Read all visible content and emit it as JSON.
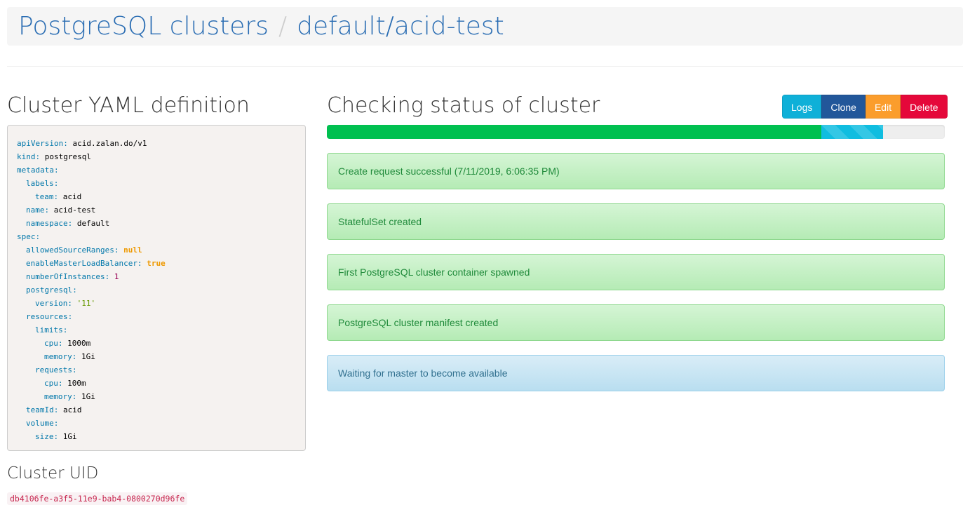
{
  "breadcrumb": {
    "root": "PostgreSQL clusters",
    "separator": "/",
    "current": "default/acid-test"
  },
  "yaml": {
    "title": "Cluster YAML definition",
    "lines": [
      {
        "indent": 0,
        "key": "apiVersion",
        "value": "acid.zalan.do/v1",
        "type": "str"
      },
      {
        "indent": 0,
        "key": "kind",
        "value": "postgresql",
        "type": "str"
      },
      {
        "indent": 0,
        "key": "metadata",
        "value": "",
        "type": ""
      },
      {
        "indent": 1,
        "key": "labels",
        "value": "",
        "type": ""
      },
      {
        "indent": 2,
        "key": "team",
        "value": "acid",
        "type": "str"
      },
      {
        "indent": 1,
        "key": "name",
        "value": "acid-test",
        "type": "str"
      },
      {
        "indent": 1,
        "key": "namespace",
        "value": "default",
        "type": "str"
      },
      {
        "indent": 0,
        "key": "spec",
        "value": "",
        "type": ""
      },
      {
        "indent": 1,
        "key": "allowedSourceRanges",
        "value": "null",
        "type": "bool"
      },
      {
        "indent": 1,
        "key": "enableMasterLoadBalancer",
        "value": "true",
        "type": "bool"
      },
      {
        "indent": 1,
        "key": "numberOfInstances",
        "value": "1",
        "type": "num"
      },
      {
        "indent": 1,
        "key": "postgresql",
        "value": "",
        "type": ""
      },
      {
        "indent": 2,
        "key": "version",
        "value": "'11'",
        "type": "quoted"
      },
      {
        "indent": 1,
        "key": "resources",
        "value": "",
        "type": ""
      },
      {
        "indent": 2,
        "key": "limits",
        "value": "",
        "type": ""
      },
      {
        "indent": 3,
        "key": "cpu",
        "value": "1000m",
        "type": "str"
      },
      {
        "indent": 3,
        "key": "memory",
        "value": "1Gi",
        "type": "str"
      },
      {
        "indent": 2,
        "key": "requests",
        "value": "",
        "type": ""
      },
      {
        "indent": 3,
        "key": "cpu",
        "value": "100m",
        "type": "str"
      },
      {
        "indent": 3,
        "key": "memory",
        "value": "1Gi",
        "type": "str"
      },
      {
        "indent": 1,
        "key": "teamId",
        "value": "acid",
        "type": "str"
      },
      {
        "indent": 1,
        "key": "volume",
        "value": "",
        "type": ""
      },
      {
        "indent": 2,
        "key": "size",
        "value": "1Gi",
        "type": "str"
      }
    ]
  },
  "uid": {
    "title": "Cluster UID",
    "value": "db4106fe-a3f5-11e9-bab4-0800270d96fe"
  },
  "status": {
    "title": "Checking status of cluster",
    "buttons": [
      {
        "label": "Logs",
        "color": "#0fb0d8"
      },
      {
        "label": "Clone",
        "color": "#22579a"
      },
      {
        "label": "Edit",
        "color": "#fb9d2c"
      },
      {
        "label": "Delete",
        "color": "#e5083a"
      }
    ],
    "progress": {
      "success_percent": 80,
      "active_percent": 10,
      "success_color": "#00c050",
      "active_color": "#10bde0"
    },
    "messages": [
      {
        "text": "Create request successful (7/11/2019, 6:06:35 PM)",
        "kind": "success"
      },
      {
        "text": "StatefulSet created",
        "kind": "success"
      },
      {
        "text": "First PostgreSQL cluster container spawned",
        "kind": "success"
      },
      {
        "text": "PostgreSQL cluster manifest created",
        "kind": "success"
      },
      {
        "text": "Waiting for master to become available",
        "kind": "info"
      }
    ]
  }
}
